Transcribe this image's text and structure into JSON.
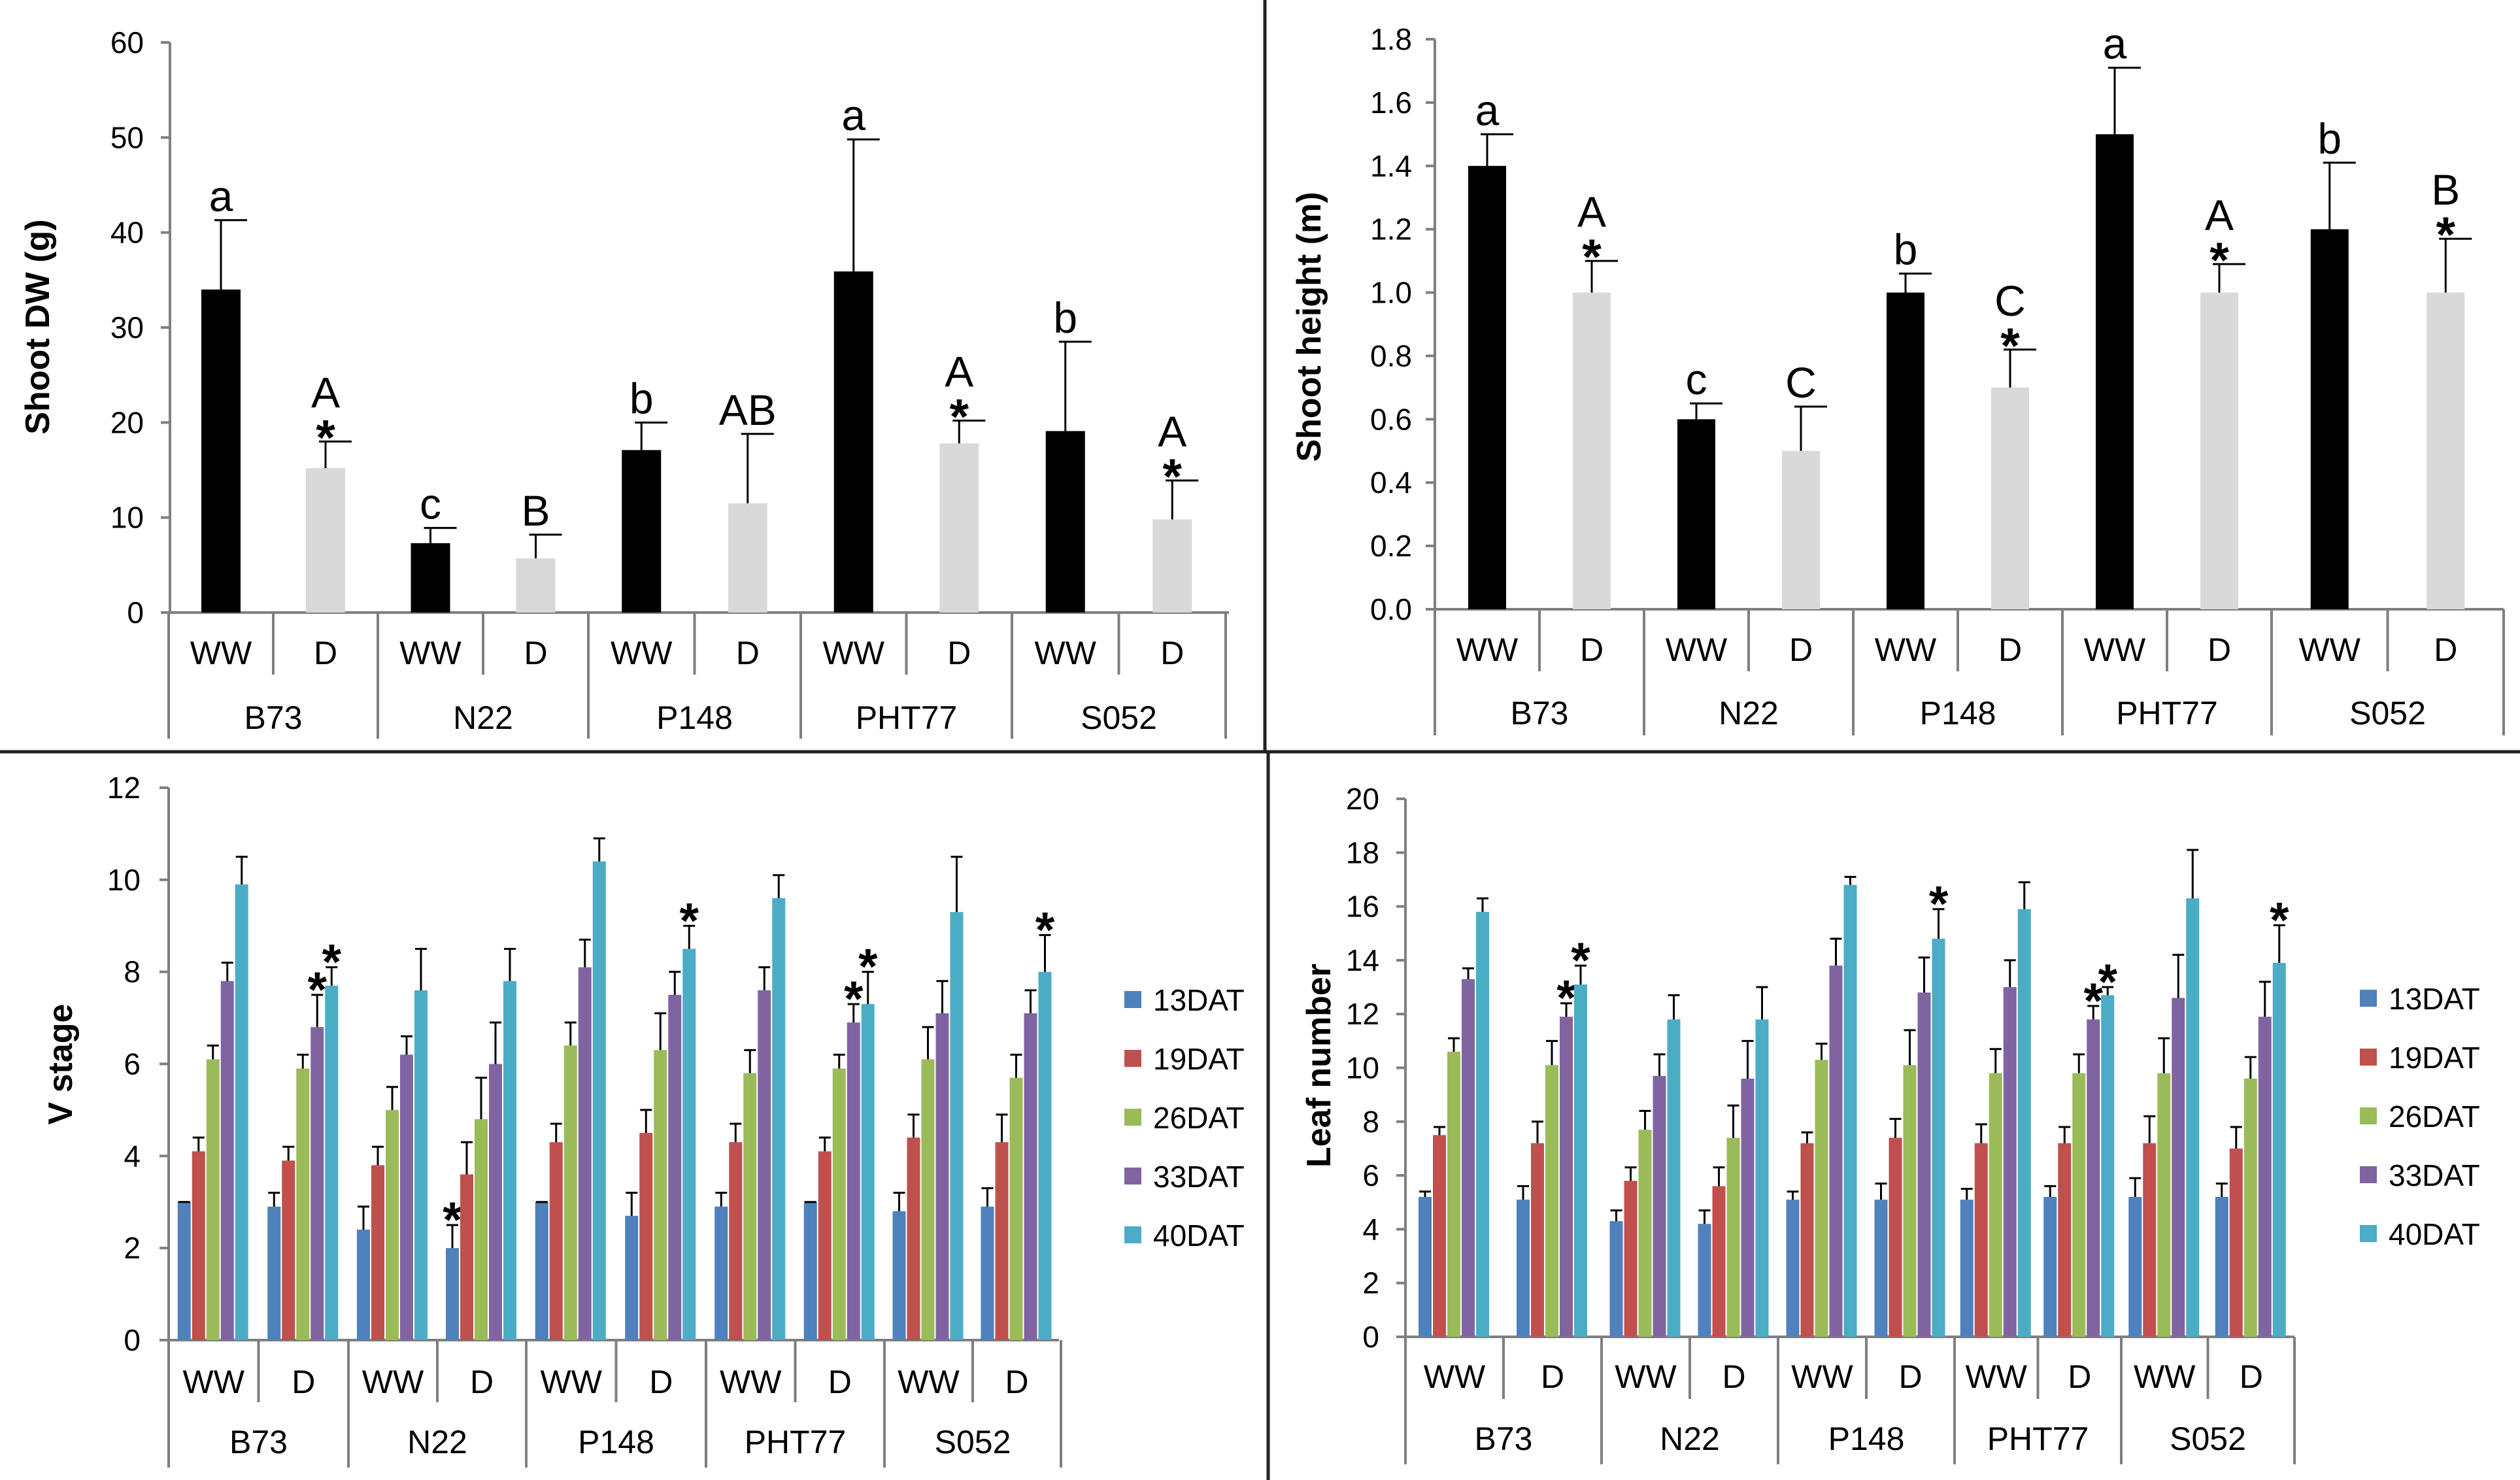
{
  "chart_data": [
    {
      "panel": "top-left",
      "type": "bar",
      "ylabel": "Shoot DW (g)",
      "ylim": [
        0,
        60
      ],
      "ytick_step": 10,
      "ytick_decimals": 0,
      "groups": [
        "B73",
        "N22",
        "P148",
        "PHT77",
        "S052"
      ],
      "treatments": [
        "WW",
        "D"
      ],
      "colors": [
        "#000000",
        "#d9d9d9"
      ],
      "values": [
        [
          34,
          15.2
        ],
        [
          7.3,
          5.7
        ],
        [
          17.1,
          11.5
        ],
        [
          35.9,
          17.8
        ],
        [
          19.1,
          9.8
        ]
      ],
      "errors": [
        [
          7.3,
          2.8
        ],
        [
          1.6,
          2.5
        ],
        [
          2.9,
          7.3
        ],
        [
          13.9,
          2.4
        ],
        [
          9.4,
          4.1
        ]
      ],
      "letters": [
        [
          "a",
          "A"
        ],
        [
          "c",
          "B"
        ],
        [
          "b",
          "AB"
        ],
        [
          "a",
          "A"
        ],
        [
          "b",
          "A"
        ]
      ],
      "stars": [
        [
          false,
          true
        ],
        [
          false,
          false
        ],
        [
          false,
          false
        ],
        [
          false,
          true
        ],
        [
          false,
          true
        ]
      ]
    },
    {
      "panel": "top-right",
      "type": "bar",
      "ylabel": "Shoot height (m)",
      "ylim": [
        0,
        1.8
      ],
      "ytick_step": 0.2,
      "ytick_decimals": 1,
      "groups": [
        "B73",
        "N22",
        "P148",
        "PHT77",
        "S052"
      ],
      "treatments": [
        "WW",
        "D"
      ],
      "colors": [
        "#000000",
        "#d9d9d9"
      ],
      "values": [
        [
          1.4,
          1.0
        ],
        [
          0.6,
          0.5
        ],
        [
          1.0,
          0.7
        ],
        [
          1.5,
          1.0
        ],
        [
          1.2,
          1.0
        ]
      ],
      "errors": [
        [
          0.1,
          0.1
        ],
        [
          0.05,
          0.14
        ],
        [
          0.06,
          0.12
        ],
        [
          0.21,
          0.09
        ],
        [
          0.21,
          0.17
        ]
      ],
      "letters": [
        [
          "a",
          "A"
        ],
        [
          "c",
          "C"
        ],
        [
          "b",
          "C"
        ],
        [
          "a",
          "A"
        ],
        [
          "b",
          "B"
        ]
      ],
      "stars": [
        [
          false,
          true
        ],
        [
          false,
          false
        ],
        [
          false,
          true
        ],
        [
          false,
          true
        ],
        [
          false,
          true
        ]
      ]
    },
    {
      "panel": "bottom-left",
      "type": "bar",
      "ylabel": "V stage",
      "ylim": [
        0,
        12
      ],
      "ytick_step": 2,
      "ytick_decimals": 0,
      "groups": [
        "B73",
        "N22",
        "P148",
        "PHT77",
        "S052"
      ],
      "treatments": [
        "WW",
        "D"
      ],
      "series_names": [
        "13DAT",
        "19DAT",
        "26DAT",
        "33DAT",
        "40DAT"
      ],
      "series_colors": [
        "#4f81bd",
        "#c0504d",
        "#9bbb59",
        "#8064a2",
        "#4bacc6"
      ],
      "values": [
        [
          [
            3.0,
            4.1,
            6.1,
            7.8,
            9.9
          ],
          [
            2.9,
            3.9,
            5.9,
            6.8,
            7.7
          ]
        ],
        [
          [
            2.4,
            3.8,
            5.0,
            6.2,
            7.6
          ],
          [
            2.0,
            3.6,
            4.8,
            6.0,
            7.8
          ]
        ],
        [
          [
            3.0,
            4.3,
            6.4,
            8.1,
            10.4
          ],
          [
            2.7,
            4.5,
            6.3,
            7.5,
            8.5
          ]
        ],
        [
          [
            2.9,
            4.3,
            5.8,
            7.6,
            9.6
          ],
          [
            3.0,
            4.1,
            5.9,
            6.9,
            7.3
          ]
        ],
        [
          [
            2.8,
            4.4,
            6.1,
            7.1,
            9.3
          ],
          [
            2.9,
            4.3,
            5.7,
            7.1,
            8.0
          ]
        ]
      ],
      "errors": [
        [
          [
            0.0,
            0.3,
            0.3,
            0.4,
            0.6
          ],
          [
            0.3,
            0.3,
            0.3,
            0.7,
            0.4
          ]
        ],
        [
          [
            0.5,
            0.4,
            0.5,
            0.4,
            0.9
          ],
          [
            0.5,
            0.7,
            0.9,
            0.9,
            0.7
          ]
        ],
        [
          [
            0.0,
            0.4,
            0.5,
            0.6,
            0.5
          ],
          [
            0.5,
            0.5,
            0.8,
            0.5,
            0.5
          ]
        ],
        [
          [
            0.3,
            0.4,
            0.5,
            0.5,
            0.5
          ],
          [
            0.0,
            0.3,
            0.3,
            0.4,
            0.7
          ]
        ],
        [
          [
            0.4,
            0.5,
            0.7,
            0.7,
            1.2
          ],
          [
            0.4,
            0.6,
            0.5,
            0.5,
            0.8
          ]
        ]
      ],
      "stars": [
        [
          [],
          [
            3,
            4
          ]
        ],
        [
          [],
          [
            0
          ]
        ],
        [
          [],
          [
            4
          ]
        ],
        [
          [],
          [
            3,
            4
          ]
        ],
        [
          [],
          [
            4
          ]
        ]
      ]
    },
    {
      "panel": "bottom-right",
      "type": "bar",
      "ylabel": "Leaf number",
      "ylim": [
        0,
        20
      ],
      "ytick_step": 2,
      "ytick_decimals": 0,
      "groups": [
        "B73",
        "N22",
        "P148",
        "PHT77",
        "S052"
      ],
      "treatments": [
        "WW",
        "D"
      ],
      "series_names": [
        "13DAT",
        "19DAT",
        "26DAT",
        "33DAT",
        "40DAT"
      ],
      "series_colors": [
        "#4f81bd",
        "#c0504d",
        "#9bbb59",
        "#8064a2",
        "#4bacc6"
      ],
      "values": [
        [
          [
            5.2,
            7.5,
            10.6,
            13.3,
            15.8
          ],
          [
            5.1,
            7.2,
            10.1,
            11.9,
            13.1
          ]
        ],
        [
          [
            4.3,
            5.8,
            7.7,
            9.7,
            11.8
          ],
          [
            4.2,
            5.6,
            7.4,
            9.6,
            11.8
          ]
        ],
        [
          [
            5.1,
            7.2,
            10.3,
            13.8,
            16.8
          ],
          [
            5.1,
            7.4,
            10.1,
            12.8,
            14.8
          ]
        ],
        [
          [
            5.1,
            7.2,
            9.8,
            13.0,
            15.9
          ],
          [
            5.2,
            7.2,
            9.8,
            11.8,
            12.7
          ]
        ],
        [
          [
            5.2,
            7.2,
            9.8,
            12.6,
            16.3
          ],
          [
            5.2,
            7.0,
            9.6,
            11.9,
            13.9
          ]
        ]
      ],
      "errors": [
        [
          [
            0.2,
            0.3,
            0.5,
            0.4,
            0.5
          ],
          [
            0.5,
            0.8,
            0.9,
            0.5,
            0.7
          ]
        ],
        [
          [
            0.4,
            0.5,
            0.7,
            0.8,
            0.9
          ],
          [
            0.5,
            0.7,
            1.2,
            1.4,
            1.2
          ]
        ],
        [
          [
            0.3,
            0.4,
            0.6,
            1.0,
            0.3
          ],
          [
            0.6,
            0.7,
            1.3,
            1.3,
            1.1
          ]
        ],
        [
          [
            0.4,
            0.7,
            0.9,
            1.0,
            1.0
          ],
          [
            0.4,
            0.6,
            0.7,
            0.5,
            0.3
          ]
        ],
        [
          [
            0.7,
            1.0,
            1.3,
            1.6,
            1.8
          ],
          [
            0.5,
            0.8,
            0.8,
            1.3,
            1.4
          ]
        ]
      ],
      "stars": [
        [
          [],
          [
            3,
            4
          ]
        ],
        [
          [],
          []
        ],
        [
          [],
          [
            4
          ]
        ],
        [
          [],
          [
            3,
            4
          ]
        ],
        [
          [],
          [
            4
          ]
        ]
      ]
    }
  ]
}
